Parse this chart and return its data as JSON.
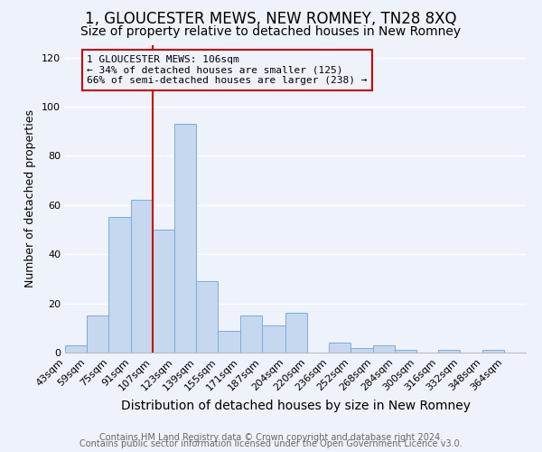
{
  "title": "1, GLOUCESTER MEWS, NEW ROMNEY, TN28 8XQ",
  "subtitle": "Size of property relative to detached houses in New Romney",
  "xlabel": "Distribution of detached houses by size in New Romney",
  "ylabel": "Number of detached properties",
  "bin_labels": [
    "43sqm",
    "59sqm",
    "75sqm",
    "91sqm",
    "107sqm",
    "123sqm",
    "139sqm",
    "155sqm",
    "171sqm",
    "187sqm",
    "204sqm",
    "220sqm",
    "236sqm",
    "252sqm",
    "268sqm",
    "284sqm",
    "300sqm",
    "316sqm",
    "332sqm",
    "348sqm",
    "364sqm"
  ],
  "bin_edges": [
    43,
    59,
    75,
    91,
    107,
    123,
    139,
    155,
    171,
    187,
    204,
    220,
    236,
    252,
    268,
    284,
    300,
    316,
    332,
    348,
    364,
    380
  ],
  "bar_values": [
    3,
    15,
    55,
    62,
    50,
    93,
    29,
    9,
    15,
    11,
    16,
    0,
    4,
    2,
    3,
    1,
    0,
    1,
    0,
    1,
    0
  ],
  "bar_color": "#c5d8f0",
  "bar_edge_color": "#7aaed6",
  "vline_x": 107,
  "vline_color": "#cc0000",
  "annotation_text": "1 GLOUCESTER MEWS: 106sqm\n← 34% of detached houses are smaller (125)\n66% of semi-detached houses are larger (238) →",
  "annotation_box_edge_color": "#cc0000",
  "ylim": [
    0,
    125
  ],
  "yticks": [
    0,
    20,
    40,
    60,
    80,
    100,
    120
  ],
  "footer_line1": "Contains HM Land Registry data © Crown copyright and database right 2024.",
  "footer_line2": "Contains public sector information licensed under the Open Government Licence v3.0.",
  "background_color": "#eef2fa",
  "grid_color": "#ffffff",
  "title_fontsize": 12,
  "subtitle_fontsize": 10,
  "ylabel_fontsize": 9,
  "xlabel_fontsize": 10,
  "footer_fontsize": 7,
  "tick_fontsize": 8
}
